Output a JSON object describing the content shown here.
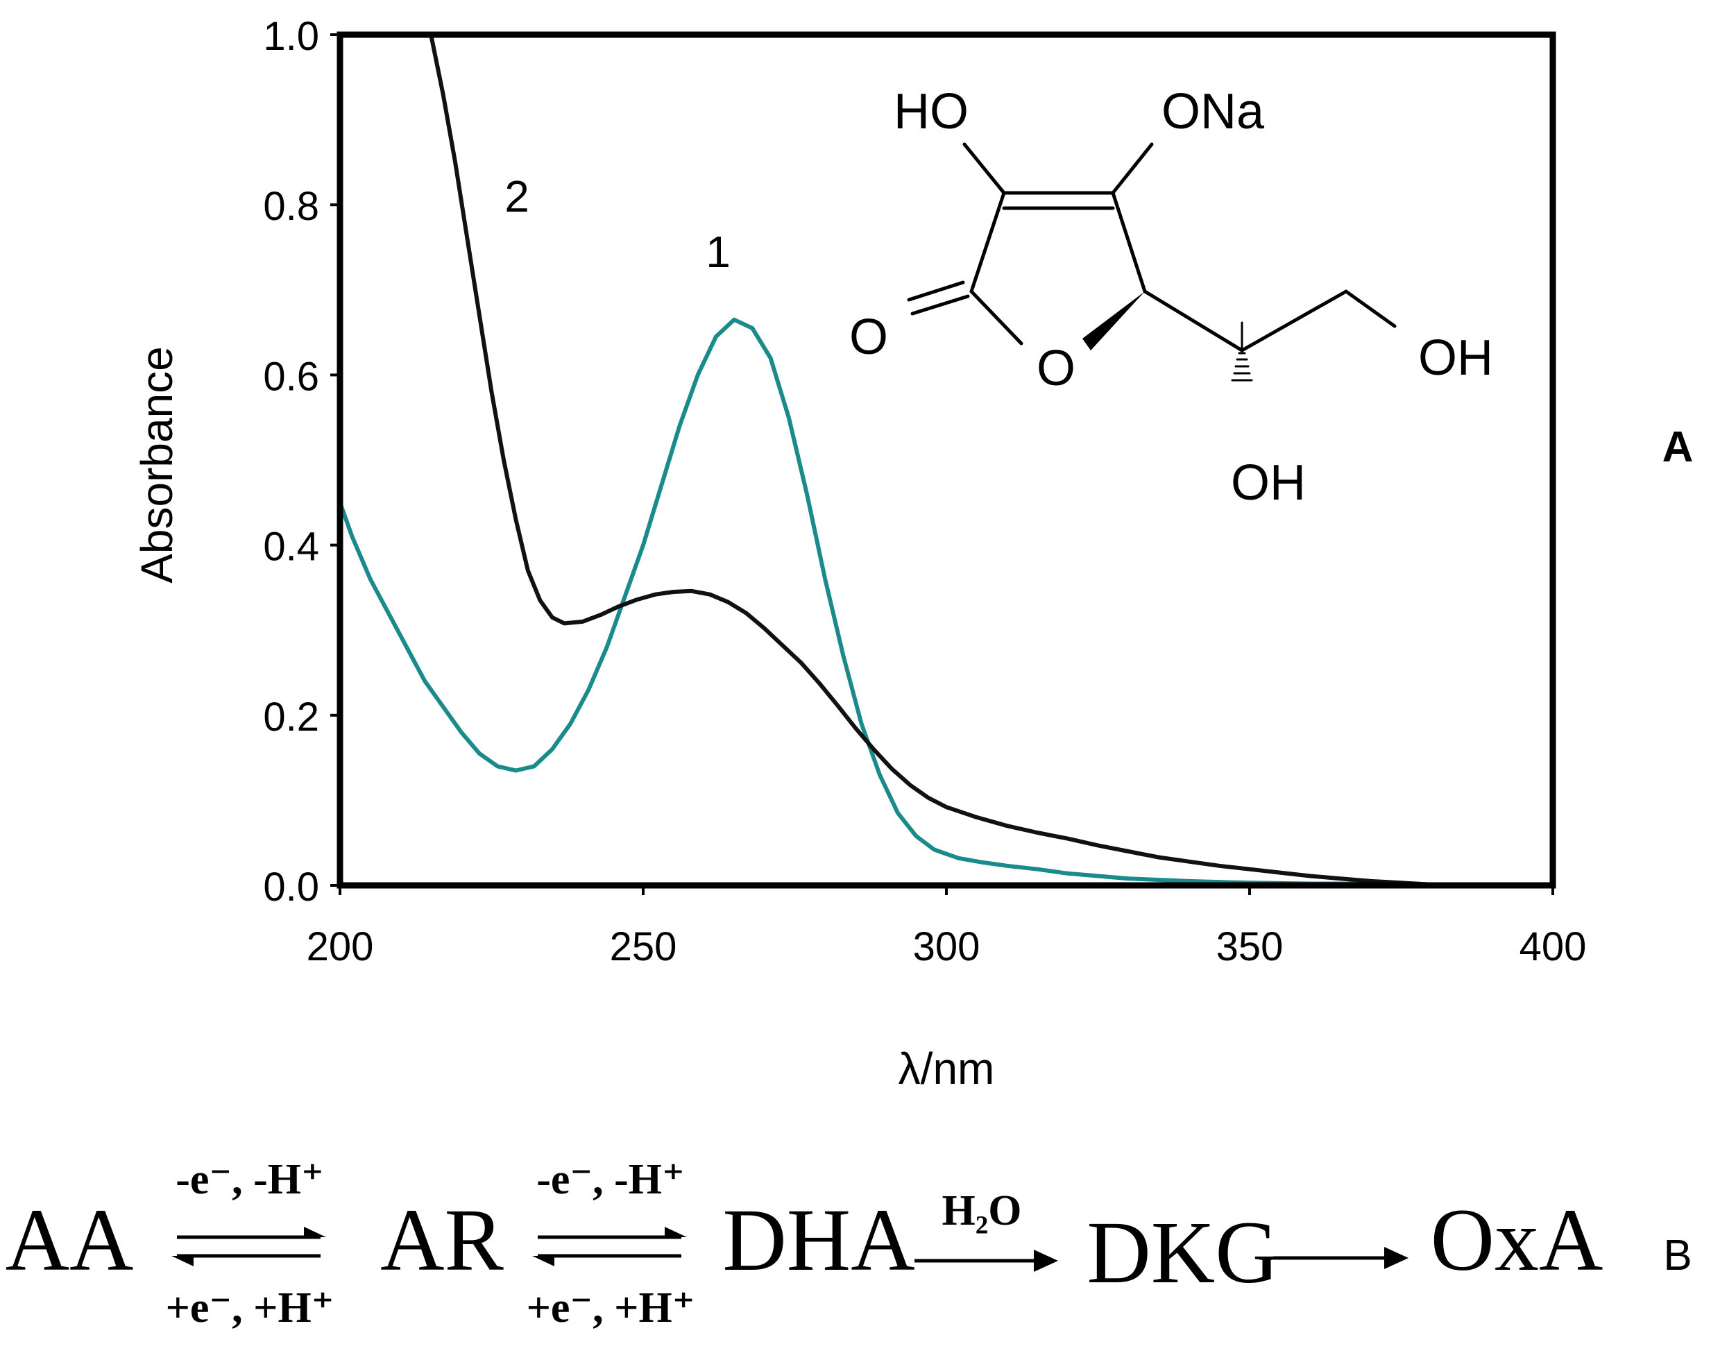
{
  "panel_a_label": "A",
  "panel_b_label": "B",
  "chart_data": {
    "type": "line",
    "xlabel": "λ/nm",
    "ylabel": "Absorbance",
    "xlim": [
      200,
      400
    ],
    "ylim": [
      0,
      1.0
    ],
    "x_ticks": [
      "200",
      "250",
      "300",
      "350",
      "400"
    ],
    "y_ticks": [
      "0.0",
      "0.2",
      "0.4",
      "0.6",
      "0.8",
      "1.0"
    ],
    "grid": false,
    "series": [
      {
        "name": "1",
        "color": "#1b8a8a",
        "points": [
          [
            200,
            0.45
          ],
          [
            202,
            0.41
          ],
          [
            205,
            0.36
          ],
          [
            208,
            0.32
          ],
          [
            211,
            0.28
          ],
          [
            214,
            0.24
          ],
          [
            217,
            0.21
          ],
          [
            220,
            0.18
          ],
          [
            223,
            0.155
          ],
          [
            226,
            0.14
          ],
          [
            229,
            0.135
          ],
          [
            232,
            0.14
          ],
          [
            235,
            0.16
          ],
          [
            238,
            0.19
          ],
          [
            241,
            0.23
          ],
          [
            244,
            0.28
          ],
          [
            247,
            0.34
          ],
          [
            250,
            0.4
          ],
          [
            253,
            0.47
          ],
          [
            256,
            0.54
          ],
          [
            259,
            0.6
          ],
          [
            262,
            0.645
          ],
          [
            265,
            0.665
          ],
          [
            268,
            0.655
          ],
          [
            271,
            0.62
          ],
          [
            274,
            0.55
          ],
          [
            277,
            0.46
          ],
          [
            280,
            0.36
          ],
          [
            283,
            0.27
          ],
          [
            286,
            0.19
          ],
          [
            289,
            0.13
          ],
          [
            292,
            0.085
          ],
          [
            295,
            0.058
          ],
          [
            298,
            0.042
          ],
          [
            302,
            0.032
          ],
          [
            306,
            0.027
          ],
          [
            310,
            0.023
          ],
          [
            315,
            0.019
          ],
          [
            320,
            0.014
          ],
          [
            325,
            0.011
          ],
          [
            330,
            0.008
          ],
          [
            340,
            0.005
          ],
          [
            350,
            0.003
          ],
          [
            360,
            0.002
          ],
          [
            370,
            0.002
          ],
          [
            380,
            0.001
          ],
          [
            392,
            0.0
          ]
        ]
      },
      {
        "name": "2",
        "color": "#111111",
        "points": [
          [
            215,
            1.0
          ],
          [
            217,
            0.93
          ],
          [
            219,
            0.85
          ],
          [
            221,
            0.76
          ],
          [
            223,
            0.67
          ],
          [
            225,
            0.58
          ],
          [
            227,
            0.5
          ],
          [
            229,
            0.43
          ],
          [
            231,
            0.37
          ],
          [
            233,
            0.335
          ],
          [
            235,
            0.315
          ],
          [
            237,
            0.308
          ],
          [
            240,
            0.31
          ],
          [
            243,
            0.318
          ],
          [
            246,
            0.328
          ],
          [
            249,
            0.336
          ],
          [
            252,
            0.342
          ],
          [
            255,
            0.345
          ],
          [
            258,
            0.346
          ],
          [
            261,
            0.342
          ],
          [
            264,
            0.333
          ],
          [
            267,
            0.32
          ],
          [
            270,
            0.302
          ],
          [
            273,
            0.282
          ],
          [
            276,
            0.262
          ],
          [
            279,
            0.238
          ],
          [
            282,
            0.212
          ],
          [
            285,
            0.185
          ],
          [
            288,
            0.16
          ],
          [
            291,
            0.137
          ],
          [
            294,
            0.118
          ],
          [
            297,
            0.103
          ],
          [
            300,
            0.092
          ],
          [
            305,
            0.08
          ],
          [
            310,
            0.07
          ],
          [
            315,
            0.062
          ],
          [
            320,
            0.055
          ],
          [
            325,
            0.047
          ],
          [
            330,
            0.04
          ],
          [
            335,
            0.033
          ],
          [
            340,
            0.028
          ],
          [
            345,
            0.023
          ],
          [
            350,
            0.019
          ],
          [
            355,
            0.015
          ],
          [
            360,
            0.011
          ],
          [
            365,
            0.008
          ],
          [
            370,
            0.005
          ],
          [
            375,
            0.003
          ],
          [
            380,
            0.001
          ],
          [
            388,
            0.0
          ]
        ]
      }
    ],
    "annotations": [
      "1",
      "2"
    ]
  },
  "structure": {
    "labels": {
      "ho": "HO",
      "ona": "ONa",
      "o_carbonyl": "O",
      "o_ring": "O",
      "oh_right": "OH",
      "oh_bottom": "OH"
    }
  },
  "scheme": {
    "species": [
      "AA",
      "AR",
      "DHA",
      "DKG",
      "OxA"
    ],
    "step1_top": "-e⁻, -H⁺",
    "step1_bottom": "+e⁻, +H⁺",
    "step2_top": "-e⁻, -H⁺",
    "step2_bottom": "+e⁻, +H⁺",
    "step3_label": "H₂O"
  }
}
